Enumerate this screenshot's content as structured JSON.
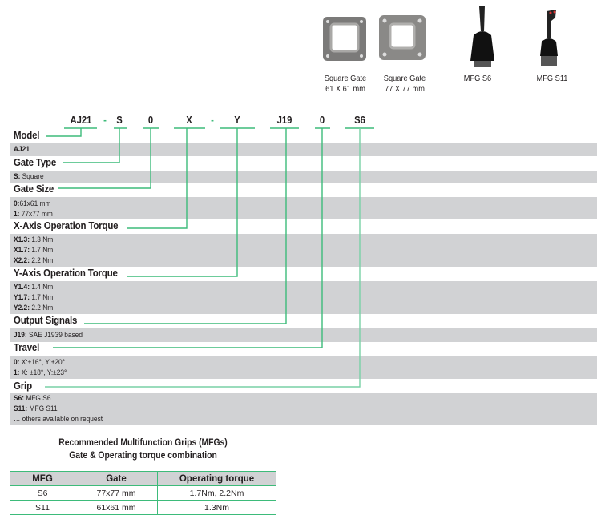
{
  "accent_color": "#3dbb7a",
  "images": [
    {
      "caption_line1": "Square Gate",
      "caption_line2": "61 X 61 mm"
    },
    {
      "caption_line1": "Square Gate",
      "caption_line2": "77 X 77 mm"
    },
    {
      "caption_line1": "MFG S6",
      "caption_line2": ""
    },
    {
      "caption_line1": "MFG S11",
      "caption_line2": ""
    }
  ],
  "code": {
    "model": "AJ21",
    "dash1": "-",
    "gate_type": "S",
    "gate_size": "0",
    "x_torque": "X",
    "dash2": "-",
    "y_torque": "Y",
    "output": "J19",
    "travel": "0",
    "grip": "S6"
  },
  "sections": {
    "model": {
      "heading": "Model",
      "options": [
        {
          "key": "AJ21",
          "value": ""
        }
      ]
    },
    "gate_type": {
      "heading": "Gate Type",
      "options": [
        {
          "key": "S:",
          "value": " Square"
        }
      ]
    },
    "gate_size": {
      "heading": "Gate Size",
      "options": [
        {
          "key": "0:",
          "value": "61x61 mm"
        },
        {
          "key": "1:",
          "value": " 77x77 mm"
        }
      ]
    },
    "x_torque": {
      "heading": "X-Axis Operation Torque",
      "options": [
        {
          "key": "X1.3:",
          "value": " 1.3 Nm"
        },
        {
          "key": "X1.7:",
          "value": " 1.7 Nm"
        },
        {
          "key": "X2.2:",
          "value": " 2.2 Nm"
        }
      ]
    },
    "y_torque": {
      "heading": "Y-Axis Operation Torque",
      "options": [
        {
          "key": "Y1.4:",
          "value": " 1.4 Nm"
        },
        {
          "key": "Y1.7:",
          "value": " 1.7 Nm"
        },
        {
          "key": "Y2.2:",
          "value": " 2.2 Nm"
        }
      ]
    },
    "output": {
      "heading": "Output Signals",
      "options": [
        {
          "key": "J19:",
          "value": " SAE J1939 based"
        }
      ]
    },
    "travel": {
      "heading": "Travel",
      "options": [
        {
          "key": "0:",
          "value": " X:±16°, Y:±20°"
        },
        {
          "key": "1:",
          "value": " X: ±18°, Y:±23°"
        }
      ]
    },
    "grip": {
      "heading": "Grip",
      "options": [
        {
          "key": "S6:",
          "value": " MFG S6"
        },
        {
          "key": "S11:",
          "value": " MFG S11"
        }
      ],
      "note": "… others available on request"
    }
  },
  "recommend": {
    "title1": "Recommended Multifunction Grips (MFGs)",
    "title2": "Gate & Operating torque combination",
    "headers": [
      "MFG",
      "Gate",
      "Operating torque"
    ],
    "rows": [
      [
        "S6",
        "77x77 mm",
        "1.7Nm, 2.2Nm"
      ],
      [
        "S11",
        "61x61 mm",
        "1.3Nm"
      ]
    ]
  }
}
